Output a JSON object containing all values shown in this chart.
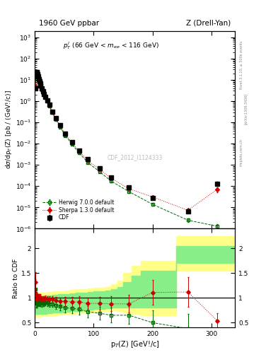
{
  "title_left": "1960 GeV ppbar",
  "title_right": "Z (Drell-Yan)",
  "annotation": "$p_T^l$ (66 GeV < $m_{ee}$ < 116 GeV)",
  "watermark": "CDF_2012_I1124333",
  "cdf_x": [
    1,
    2,
    3,
    4,
    5,
    6,
    7,
    8,
    9,
    10,
    12,
    14,
    16,
    18,
    21,
    25,
    30,
    36,
    43,
    52,
    63,
    75,
    90,
    110,
    130,
    160,
    200,
    260,
    310
  ],
  "cdf_y": [
    3.8,
    14.0,
    22.0,
    22.5,
    18.0,
    14.0,
    11.0,
    8.5,
    6.8,
    5.5,
    3.8,
    2.8,
    2.1,
    1.6,
    1.1,
    0.65,
    0.32,
    0.16,
    0.072,
    0.03,
    0.012,
    0.0048,
    0.0018,
    0.0007,
    0.00026,
    8.5e-05,
    2.8e-05,
    6.5e-06,
    0.00013
  ],
  "cdf_yerr": [
    0.5,
    1.5,
    2.0,
    2.0,
    1.5,
    1.2,
    0.9,
    0.7,
    0.5,
    0.4,
    0.3,
    0.2,
    0.15,
    0.12,
    0.08,
    0.05,
    0.025,
    0.012,
    0.006,
    0.003,
    0.001,
    0.0005,
    0.0002,
    8e-05,
    3e-05,
    1e-05,
    4e-06,
    1e-06,
    3e-05
  ],
  "herwig_x": [
    1,
    2,
    3,
    4,
    5,
    6,
    7,
    8,
    9,
    10,
    12,
    14,
    16,
    18,
    21,
    25,
    30,
    36,
    43,
    52,
    63,
    75,
    90,
    110,
    130,
    160,
    200,
    260,
    310
  ],
  "herwig_y": [
    4.5,
    13.0,
    20.0,
    20.0,
    16.5,
    13.0,
    10.0,
    7.8,
    6.2,
    5.0,
    3.4,
    2.5,
    1.9,
    1.45,
    0.99,
    0.57,
    0.28,
    0.136,
    0.06,
    0.024,
    0.0095,
    0.0037,
    0.0013,
    0.00048,
    0.00017,
    5.5e-05,
    1.4e-05,
    2.5e-06,
    1.3e-06
  ],
  "herwig_yerr": [
    0.6,
    1.5,
    2.0,
    2.0,
    1.5,
    1.2,
    0.9,
    0.7,
    0.5,
    0.4,
    0.3,
    0.2,
    0.15,
    0.12,
    0.08,
    0.05,
    0.025,
    0.012,
    0.005,
    0.002,
    0.001,
    0.0004,
    0.00015,
    6e-05,
    2e-05,
    7e-06,
    2e-06,
    4e-07,
    3e-07
  ],
  "sherpa_x": [
    1,
    2,
    3,
    4,
    5,
    6,
    7,
    8,
    9,
    10,
    12,
    14,
    16,
    18,
    21,
    25,
    30,
    36,
    43,
    52,
    63,
    75,
    90,
    110,
    130,
    160,
    200,
    260,
    310
  ],
  "sherpa_y": [
    5.0,
    15.0,
    22.5,
    22.0,
    18.0,
    14.0,
    11.0,
    8.5,
    6.8,
    5.4,
    3.7,
    2.75,
    2.05,
    1.58,
    1.08,
    0.63,
    0.31,
    0.152,
    0.067,
    0.028,
    0.011,
    0.0044,
    0.0016,
    0.00062,
    0.00023,
    7.5e-05,
    3.1e-05,
    7.3e-06,
    7e-05
  ],
  "sherpa_yerr": [
    0.6,
    1.5,
    2.0,
    2.0,
    1.5,
    1.2,
    0.9,
    0.7,
    0.5,
    0.4,
    0.3,
    0.2,
    0.15,
    0.12,
    0.08,
    0.05,
    0.025,
    0.012,
    0.006,
    0.003,
    0.001,
    0.0005,
    0.0002,
    8e-05,
    3e-05,
    1e-05,
    5e-06,
    1e-06,
    2e-05
  ],
  "band_x_edges": [
    0,
    10,
    20,
    30,
    40,
    50,
    60,
    70,
    80,
    90,
    100,
    110,
    120,
    130,
    140,
    150,
    165,
    180,
    195,
    215,
    240,
    270,
    310,
    340
  ],
  "yellow_low": [
    0.62,
    0.63,
    0.64,
    0.65,
    0.66,
    0.67,
    0.68,
    0.69,
    0.7,
    0.71,
    0.72,
    0.73,
    0.74,
    0.75,
    0.73,
    0.7,
    0.68,
    0.65,
    0.65,
    0.65,
    1.55,
    1.55,
    1.55,
    1.55
  ],
  "yellow_high": [
    1.1,
    1.11,
    1.12,
    1.13,
    1.14,
    1.15,
    1.16,
    1.17,
    1.18,
    1.19,
    1.2,
    1.21,
    1.22,
    1.28,
    1.35,
    1.5,
    1.65,
    1.75,
    1.75,
    1.75,
    2.25,
    2.25,
    2.25,
    2.25
  ],
  "green_low": [
    0.67,
    0.68,
    0.69,
    0.7,
    0.71,
    0.72,
    0.73,
    0.74,
    0.75,
    0.76,
    0.77,
    0.78,
    0.79,
    0.8,
    0.8,
    0.8,
    0.8,
    0.8,
    0.8,
    0.8,
    1.7,
    1.7,
    1.7,
    1.7
  ],
  "green_high": [
    1.03,
    1.04,
    1.05,
    1.06,
    1.07,
    1.08,
    1.09,
    1.1,
    1.11,
    1.12,
    1.13,
    1.14,
    1.15,
    1.18,
    1.22,
    1.32,
    1.45,
    1.55,
    1.55,
    1.55,
    2.05,
    2.05,
    2.05,
    2.05
  ],
  "ratio_herwig_x": [
    1,
    2,
    3,
    4,
    5,
    6,
    7,
    8,
    9,
    10,
    12,
    14,
    16,
    18,
    21,
    25,
    30,
    36,
    43,
    52,
    63,
    75,
    90,
    110,
    130,
    160,
    200,
    260,
    310
  ],
  "ratio_herwig_y": [
    1.18,
    0.93,
    0.91,
    0.89,
    0.92,
    0.93,
    0.91,
    0.92,
    0.91,
    0.91,
    0.89,
    0.89,
    0.9,
    0.91,
    0.9,
    0.88,
    0.88,
    0.85,
    0.83,
    0.8,
    0.79,
    0.77,
    0.72,
    0.69,
    0.65,
    0.65,
    0.5,
    0.38,
    0.01
  ],
  "ratio_herwig_yerr": [
    0.2,
    0.12,
    0.1,
    0.09,
    0.08,
    0.08,
    0.08,
    0.07,
    0.07,
    0.07,
    0.07,
    0.06,
    0.06,
    0.06,
    0.06,
    0.06,
    0.06,
    0.07,
    0.08,
    0.09,
    0.1,
    0.11,
    0.12,
    0.13,
    0.15,
    0.18,
    0.25,
    0.3,
    0.05
  ],
  "ratio_sherpa_x": [
    1,
    2,
    3,
    4,
    5,
    6,
    7,
    8,
    9,
    10,
    12,
    14,
    16,
    18,
    21,
    25,
    30,
    36,
    43,
    52,
    63,
    75,
    90,
    110,
    130,
    160,
    200,
    260,
    310
  ],
  "ratio_sherpa_y": [
    1.32,
    1.07,
    1.02,
    0.98,
    1.0,
    1.0,
    1.0,
    1.0,
    1.0,
    0.98,
    0.97,
    0.98,
    0.98,
    0.99,
    0.98,
    0.97,
    0.97,
    0.95,
    0.93,
    0.93,
    0.92,
    0.92,
    0.89,
    0.89,
    0.88,
    0.88,
    1.11,
    1.12,
    0.54
  ],
  "ratio_sherpa_yerr": [
    0.2,
    0.12,
    0.1,
    0.09,
    0.08,
    0.08,
    0.08,
    0.07,
    0.07,
    0.07,
    0.07,
    0.06,
    0.06,
    0.06,
    0.06,
    0.06,
    0.06,
    0.07,
    0.08,
    0.09,
    0.1,
    0.11,
    0.12,
    0.13,
    0.15,
    0.18,
    0.25,
    0.3,
    0.15
  ],
  "colors": {
    "cdf": "#000000",
    "herwig": "#006600",
    "sherpa": "#cc0000",
    "yellow": "#ffff88",
    "green": "#88ee88"
  },
  "xlim": [
    0,
    340
  ],
  "ylim_main": [
    1e-06,
    2000
  ],
  "ylim_ratio": [
    0.4,
    2.4
  ]
}
